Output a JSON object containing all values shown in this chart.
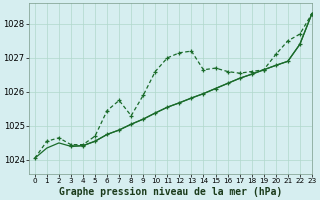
{
  "bg_color": "#d6eef0",
  "grid_color": "#b0d8cc",
  "line_color": "#1a6b2a",
  "xlabel": "Graphe pression niveau de la mer (hPa)",
  "xlim": [
    -0.5,
    23
  ],
  "ylim": [
    1023.6,
    1028.6
  ],
  "yticks": [
    1024,
    1025,
    1026,
    1027,
    1028
  ],
  "xticks": [
    0,
    1,
    2,
    3,
    4,
    5,
    6,
    7,
    8,
    9,
    10,
    11,
    12,
    13,
    14,
    15,
    16,
    17,
    18,
    19,
    20,
    21,
    22,
    23
  ],
  "line1_x": [
    0,
    1,
    2,
    3,
    4,
    5,
    6,
    7,
    8,
    9,
    10,
    11,
    12,
    13,
    14,
    15,
    16,
    17,
    18,
    19,
    20,
    21,
    22,
    23
  ],
  "line1_y": [
    1024.05,
    1024.55,
    1024.65,
    1024.45,
    1024.45,
    1024.7,
    1025.45,
    1025.75,
    1025.3,
    1025.9,
    1026.6,
    1027.0,
    1027.15,
    1027.2,
    1026.65,
    1026.7,
    1026.6,
    1026.55,
    1026.6,
    1026.65,
    1027.1,
    1027.5,
    1027.7,
    1028.3
  ],
  "line2_x": [
    0,
    1,
    2,
    3,
    4,
    5,
    6,
    7,
    8,
    9,
    10,
    11,
    12,
    13,
    14,
    15,
    16,
    17,
    18,
    19,
    20,
    21,
    22,
    23
  ],
  "line2_y": [
    1024.05,
    1024.35,
    1024.5,
    1024.4,
    1024.42,
    1024.55,
    1024.75,
    1024.88,
    1025.05,
    1025.2,
    1025.38,
    1025.55,
    1025.68,
    1025.82,
    1025.95,
    1026.1,
    1026.25,
    1026.4,
    1026.52,
    1026.65,
    1026.78,
    1026.9,
    1027.4,
    1028.3
  ],
  "line3_x": [
    3,
    4,
    5,
    6,
    7,
    8,
    9,
    10,
    11,
    12,
    13,
    14,
    15,
    16,
    17,
    18,
    19,
    20,
    21,
    22,
    23
  ],
  "line3_y": [
    1024.4,
    1024.42,
    1024.55,
    1024.75,
    1024.88,
    1025.05,
    1025.2,
    1025.38,
    1025.55,
    1025.68,
    1025.82,
    1025.95,
    1026.1,
    1026.25,
    1026.4,
    1026.52,
    1026.65,
    1026.78,
    1026.9,
    1027.4,
    1028.3
  ],
  "tick_fontsize": 6,
  "xlabel_fontsize": 7
}
